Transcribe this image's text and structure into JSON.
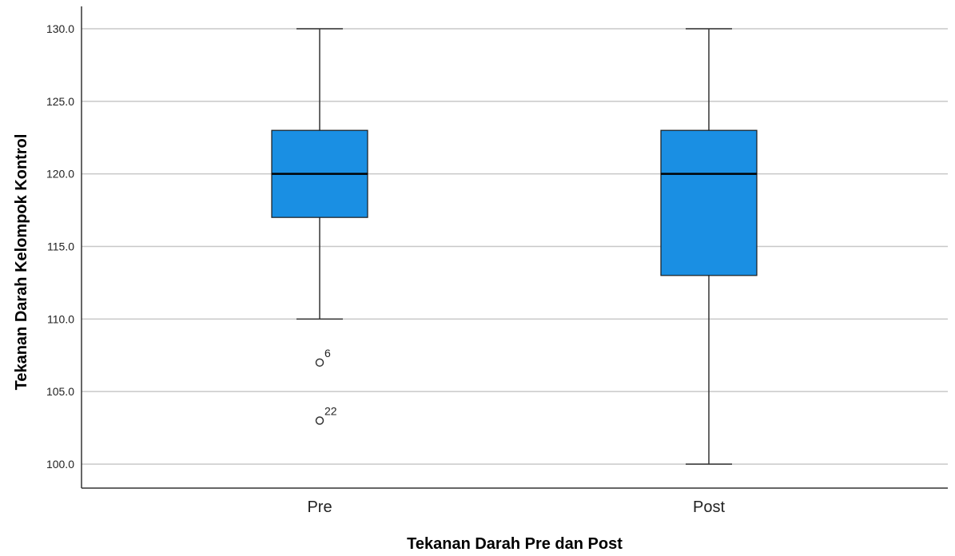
{
  "chart_data": {
    "type": "boxplot",
    "title": "",
    "xlabel": "Tekanan Darah Pre dan Post",
    "ylabel": "Tekanan Darah Kelompok Kontrol",
    "ylim": [
      98.5,
      131.5
    ],
    "yticks": [
      100.0,
      105.0,
      110.0,
      115.0,
      120.0,
      125.0,
      130.0
    ],
    "ytick_labels": [
      "100.0",
      "105.0",
      "110.0",
      "115.0",
      "120.0",
      "125.0",
      "130.0"
    ],
    "grid": true,
    "categories": [
      "Pre",
      "Post"
    ],
    "boxes": [
      {
        "category": "Pre",
        "whisker_low": 110,
        "q1": 117,
        "median": 120,
        "q3": 123,
        "whisker_high": 130,
        "outliers": [
          {
            "value": 107,
            "label": "6"
          },
          {
            "value": 103,
            "label": "22"
          }
        ]
      },
      {
        "category": "Post",
        "whisker_low": 100,
        "q1": 113,
        "median": 120,
        "q3": 123,
        "whisker_high": 130,
        "outliers": []
      }
    ],
    "colors": {
      "box_fill": "#1a8fe3",
      "box_stroke": "#1a1a1a",
      "median": "#000000",
      "whisker": "#333333",
      "grid": "#c8c8c8",
      "axis": "#333333"
    }
  }
}
